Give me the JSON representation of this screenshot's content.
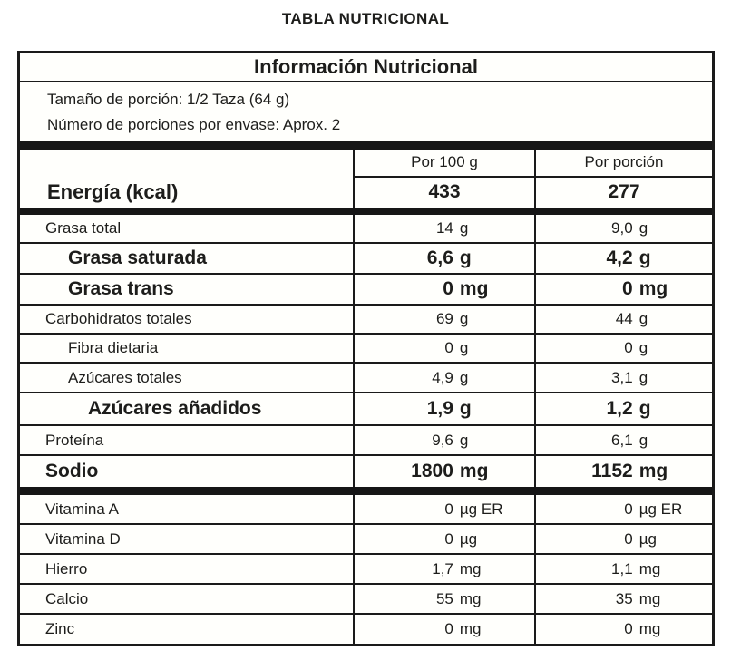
{
  "page_title": "TABLA NUTRICIONAL",
  "table": {
    "title": "Información Nutricional",
    "serving_size": "Tamaño de porción: 1/2 Taza (64 g)",
    "servings_per_package": "Número de porciones por envase: Aprox. 2",
    "columns": {
      "per_100g": "Por 100 g",
      "per_serving": "Por porción"
    },
    "energy": {
      "label": "Energía (kcal)",
      "per_100g": "433",
      "per_serving": "277"
    },
    "rows": [
      {
        "label": "Grasa total",
        "v100": {
          "num": "14",
          "unit": "g"
        },
        "vpor": {
          "num": "9,0",
          "unit": "g"
        }
      },
      {
        "label": "Grasa saturada",
        "v100": {
          "num": "6,6",
          "unit": "g"
        },
        "vpor": {
          "num": "4,2",
          "unit": "g"
        }
      },
      {
        "label": "Grasa trans",
        "v100": {
          "num": "0",
          "unit": "mg"
        },
        "vpor": {
          "num": "0",
          "unit": "mg"
        }
      },
      {
        "label": "Carbohidratos totales",
        "v100": {
          "num": "69",
          "unit": "g"
        },
        "vpor": {
          "num": "44",
          "unit": "g"
        }
      },
      {
        "label": "Fibra dietaria",
        "v100": {
          "num": "0",
          "unit": "g"
        },
        "vpor": {
          "num": "0",
          "unit": "g"
        }
      },
      {
        "label": "Azúcares totales",
        "v100": {
          "num": "4,9",
          "unit": "g"
        },
        "vpor": {
          "num": "3,1",
          "unit": "g"
        }
      },
      {
        "label": "Azúcares añadidos",
        "v100": {
          "num": "1,9",
          "unit": "g"
        },
        "vpor": {
          "num": "1,2",
          "unit": "g"
        }
      },
      {
        "label": "Proteína",
        "v100": {
          "num": "9,6",
          "unit": "g"
        },
        "vpor": {
          "num": "6,1",
          "unit": "g"
        }
      },
      {
        "label": "Sodio",
        "v100": {
          "num": "1800",
          "unit": "mg"
        },
        "vpor": {
          "num": "1152",
          "unit": "mg"
        }
      },
      {
        "label": "Vitamina A",
        "v100": {
          "num": "0",
          "unit": "µg ER"
        },
        "vpor": {
          "num": "0",
          "unit": "µg ER"
        }
      },
      {
        "label": "Vitamina D",
        "v100": {
          "num": "0",
          "unit": "µg"
        },
        "vpor": {
          "num": "0",
          "unit": "µg"
        }
      },
      {
        "label": "Hierro",
        "v100": {
          "num": "1,7",
          "unit": "mg"
        },
        "vpor": {
          "num": "1,1",
          "unit": "mg"
        }
      },
      {
        "label": "Calcio",
        "v100": {
          "num": "55",
          "unit": "mg"
        },
        "vpor": {
          "num": "35",
          "unit": "mg"
        }
      },
      {
        "label": "Zinc",
        "v100": {
          "num": "0",
          "unit": "mg"
        },
        "vpor": {
          "num": "0",
          "unit": "mg"
        }
      }
    ]
  },
  "colors": {
    "text": "#1d1d1b",
    "border": "#1a1a1a",
    "divider_bar": "#161616",
    "background": "#fffffc",
    "page_background": "#ffffff"
  }
}
